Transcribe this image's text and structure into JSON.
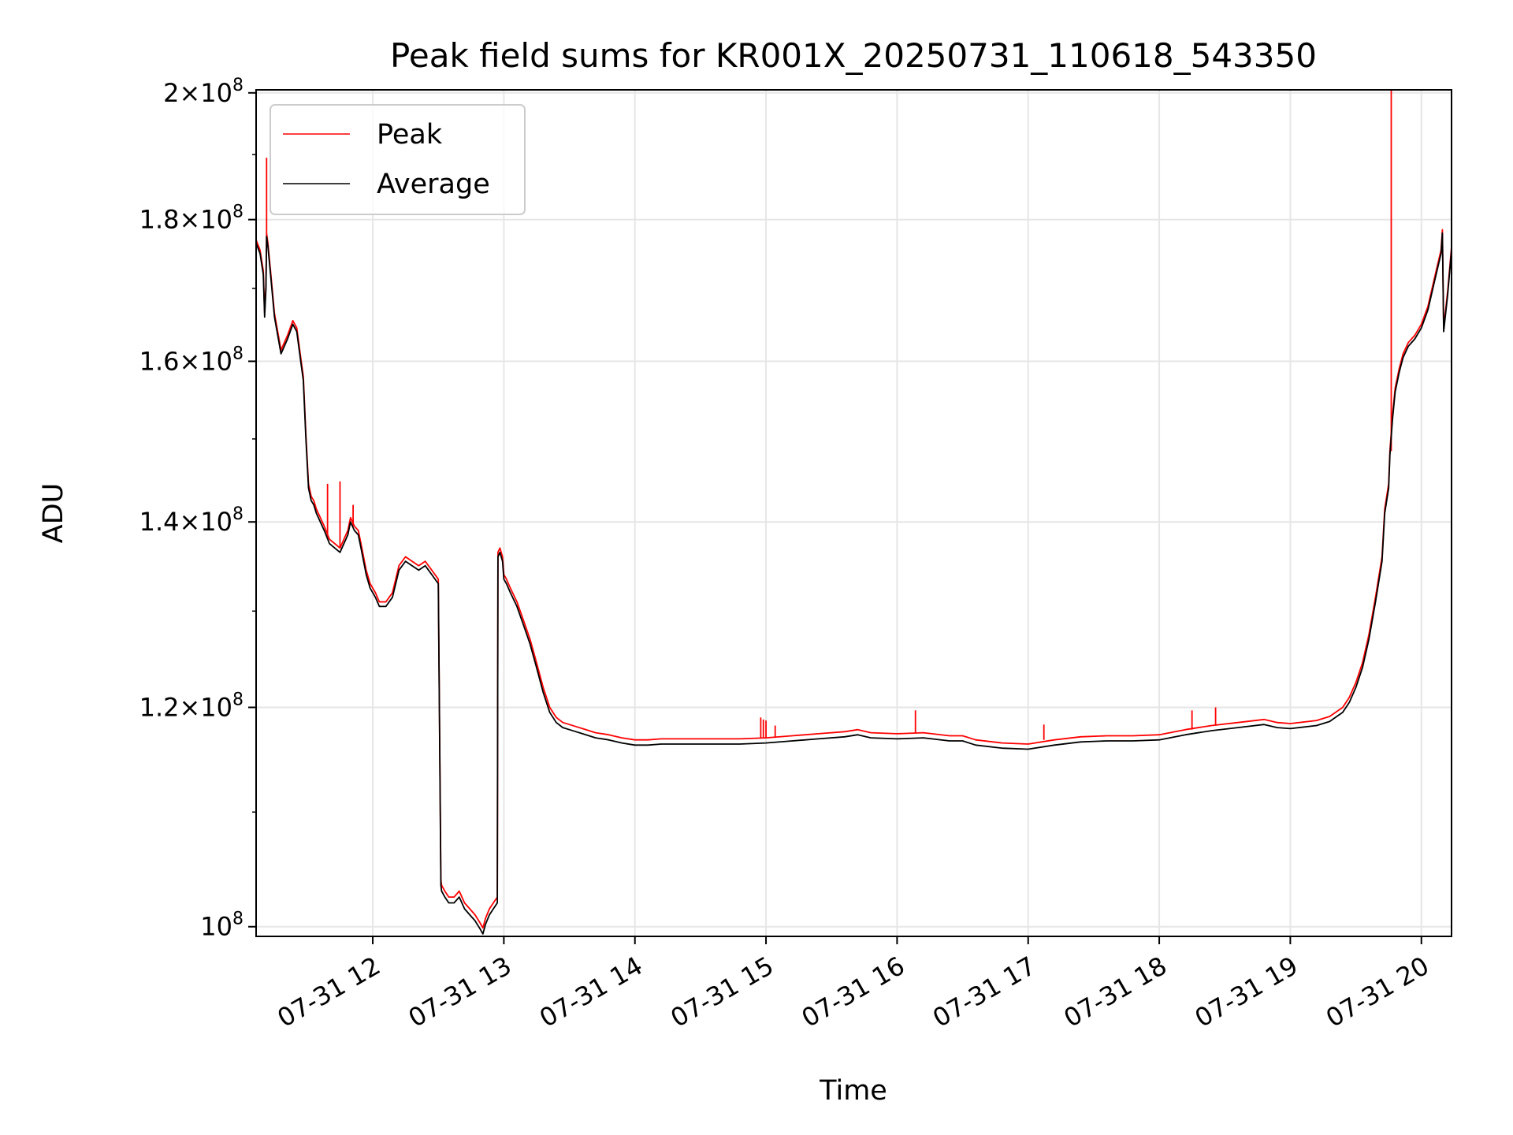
{
  "chart_data": {
    "type": "line",
    "title": "Peak field sums for KR001X_20250731_110618_543350",
    "xlabel": "Time",
    "ylabel": "ADU",
    "yscale": "log",
    "xlim": [
      11.11,
      20.23
    ],
    "ylim": [
      99200000,
      200500000
    ],
    "grid": true,
    "legend_position": "upper-left",
    "x_unit": "hour of day (2025-07-31)",
    "x_ticks": [
      {
        "value": 12,
        "label": "07-31 12"
      },
      {
        "value": 13,
        "label": "07-31 13"
      },
      {
        "value": 14,
        "label": "07-31 14"
      },
      {
        "value": 15,
        "label": "07-31 15"
      },
      {
        "value": 16,
        "label": "07-31 16"
      },
      {
        "value": 17,
        "label": "07-31 17"
      },
      {
        "value": 18,
        "label": "07-31 18"
      },
      {
        "value": 19,
        "label": "07-31 19"
      },
      {
        "value": 20,
        "label": "07-31 20"
      }
    ],
    "y_ticks": [
      {
        "value": 100000000,
        "mantissa": "",
        "exp": "8"
      },
      {
        "value": 120000000,
        "mantissa": "1.2",
        "exp": "8"
      },
      {
        "value": 140000000,
        "mantissa": "1.4",
        "exp": "8"
      },
      {
        "value": 160000000,
        "mantissa": "1.6",
        "exp": "8"
      },
      {
        "value": 180000000,
        "mantissa": "1.8",
        "exp": "8"
      },
      {
        "value": 200000000,
        "mantissa": "2",
        "exp": "8"
      }
    ],
    "series": [
      {
        "name": "Average",
        "color": "#000000",
        "x": [
          11.11,
          11.14,
          11.165,
          11.175,
          11.185,
          11.19,
          11.2,
          11.22,
          11.25,
          11.3,
          11.35,
          11.39,
          11.42,
          11.45,
          11.47,
          11.49,
          11.51,
          11.53,
          11.55,
          11.57,
          11.6,
          11.63,
          11.67,
          11.71,
          11.75,
          11.78,
          11.81,
          11.83,
          11.86,
          11.89,
          11.91,
          11.95,
          11.98,
          12.02,
          12.05,
          12.1,
          12.15,
          12.2,
          12.25,
          12.3,
          12.35,
          12.4,
          12.45,
          12.5,
          12.52,
          12.525,
          12.55,
          12.58,
          12.62,
          12.66,
          12.7,
          12.74,
          12.78,
          12.82,
          12.84,
          12.86,
          12.89,
          12.92,
          12.95,
          12.955,
          12.97,
          12.99,
          13.0,
          13.02,
          13.05,
          13.1,
          13.15,
          13.2,
          13.25,
          13.3,
          13.35,
          13.4,
          13.45,
          13.5,
          13.55,
          13.6,
          13.7,
          13.8,
          13.9,
          14.0,
          14.1,
          14.2,
          14.4,
          14.6,
          14.8,
          15.0,
          15.2,
          15.4,
          15.6,
          15.7,
          15.8,
          16.0,
          16.2,
          16.4,
          16.5,
          16.6,
          16.8,
          17.0,
          17.2,
          17.4,
          17.6,
          17.8,
          18.0,
          18.2,
          18.4,
          18.6,
          18.8,
          18.9,
          19.0,
          19.2,
          19.3,
          19.4,
          19.45,
          19.5,
          19.55,
          19.6,
          19.65,
          19.7,
          19.72,
          19.75,
          19.76,
          19.78,
          19.8,
          19.83,
          19.86,
          19.9,
          19.95,
          20.0,
          20.05,
          20.1,
          20.15,
          20.16,
          20.17,
          20.2,
          20.23
        ],
        "y": [
          176500000,
          175000000,
          172000000,
          166000000,
          170000000,
          177500000,
          176000000,
          172000000,
          166000000,
          161000000,
          163000000,
          165000000,
          164000000,
          160000000,
          157500000,
          150000000,
          144000000,
          142500000,
          142000000,
          141000000,
          140000000,
          139000000,
          137500000,
          137000000,
          136500000,
          137500000,
          138500000,
          140000000,
          139000000,
          138500000,
          137000000,
          134000000,
          132500000,
          131500000,
          130500000,
          130500000,
          131500000,
          134500000,
          135500000,
          135000000,
          134500000,
          135000000,
          134000000,
          133000000,
          103500000,
          103000000,
          102500000,
          102000000,
          102000000,
          102500000,
          101500000,
          101000000,
          100500000,
          99800000,
          99400000,
          100200000,
          101000000,
          101500000,
          102000000,
          136000000,
          136500000,
          135500000,
          133500000,
          133000000,
          132000000,
          130500000,
          128500000,
          126500000,
          124000000,
          121500000,
          119500000,
          118500000,
          118000000,
          117800000,
          117600000,
          117400000,
          117000000,
          116800000,
          116500000,
          116300000,
          116300000,
          116400000,
          116400000,
          116400000,
          116400000,
          116500000,
          116700000,
          116900000,
          117100000,
          117300000,
          117000000,
          116900000,
          117000000,
          116700000,
          116700000,
          116300000,
          116000000,
          115900000,
          116300000,
          116600000,
          116700000,
          116700000,
          116800000,
          117300000,
          117700000,
          118000000,
          118300000,
          118000000,
          117900000,
          118200000,
          118600000,
          119500000,
          120500000,
          122000000,
          124000000,
          127000000,
          131000000,
          135500000,
          141000000,
          144000000,
          148000000,
          152500000,
          156000000,
          158500000,
          160500000,
          162000000,
          163000000,
          164500000,
          167000000,
          171000000,
          175000000,
          178000000,
          164000000,
          169000000,
          175500000
        ]
      },
      {
        "name": "Peak",
        "color": "#ff0000",
        "x": [
          11.11,
          11.14,
          11.165,
          11.175,
          11.185,
          11.19,
          11.2,
          11.22,
          11.25,
          11.3,
          11.35,
          11.39,
          11.42,
          11.45,
          11.47,
          11.49,
          11.51,
          11.53,
          11.55,
          11.57,
          11.6,
          11.63,
          11.67,
          11.71,
          11.75,
          11.78,
          11.81,
          11.83,
          11.86,
          11.89,
          11.91,
          11.95,
          11.98,
          12.02,
          12.05,
          12.1,
          12.15,
          12.2,
          12.25,
          12.3,
          12.35,
          12.4,
          12.45,
          12.5,
          12.52,
          12.525,
          12.55,
          12.58,
          12.62,
          12.66,
          12.7,
          12.74,
          12.78,
          12.82,
          12.84,
          12.86,
          12.89,
          12.92,
          12.95,
          12.955,
          12.97,
          12.99,
          13.0,
          13.02,
          13.05,
          13.1,
          13.15,
          13.2,
          13.25,
          13.3,
          13.35,
          13.4,
          13.45,
          13.5,
          13.55,
          13.6,
          13.7,
          13.8,
          13.9,
          14.0,
          14.1,
          14.2,
          14.4,
          14.6,
          14.8,
          15.0,
          15.2,
          15.4,
          15.6,
          15.7,
          15.8,
          16.0,
          16.2,
          16.4,
          16.5,
          16.6,
          16.8,
          17.0,
          17.2,
          17.4,
          17.6,
          17.8,
          18.0,
          18.2,
          18.4,
          18.6,
          18.8,
          18.9,
          19.0,
          19.2,
          19.3,
          19.4,
          19.45,
          19.5,
          19.55,
          19.6,
          19.65,
          19.7,
          19.72,
          19.75,
          19.76,
          19.78,
          19.8,
          19.83,
          19.86,
          19.9,
          19.95,
          20.0,
          20.05,
          20.1,
          20.15,
          20.16,
          20.17,
          20.2,
          20.23
        ],
        "y": [
          177000000,
          175500000,
          172500000,
          166500000,
          170500000,
          178000000,
          176500000,
          172500000,
          166500000,
          161500000,
          163500000,
          165500000,
          164500000,
          160500000,
          158000000,
          150500000,
          144500000,
          143000000,
          142500000,
          141500000,
          140500000,
          139500000,
          138000000,
          137500000,
          137000000,
          138000000,
          139000000,
          140500000,
          139500000,
          139000000,
          137500000,
          134500000,
          133000000,
          132000000,
          131000000,
          131000000,
          132000000,
          135000000,
          136000000,
          135500000,
          135000000,
          135500000,
          134500000,
          133500000,
          104000000,
          103500000,
          103000000,
          102500000,
          102500000,
          103000000,
          102000000,
          101500000,
          101000000,
          100300000,
          99900000,
          100700000,
          101500000,
          102000000,
          102500000,
          136500000,
          137000000,
          136000000,
          134000000,
          133500000,
          132500000,
          131000000,
          129000000,
          127000000,
          124500000,
          122000000,
          120000000,
          119000000,
          118500000,
          118300000,
          118100000,
          117900000,
          117500000,
          117300000,
          117000000,
          116800000,
          116800000,
          116900000,
          116900000,
          116900000,
          116900000,
          117000000,
          117200000,
          117400000,
          117600000,
          117800000,
          117500000,
          117400000,
          117500000,
          117200000,
          117200000,
          116800000,
          116500000,
          116400000,
          116800000,
          117100000,
          117200000,
          117200000,
          117300000,
          117800000,
          118200000,
          118500000,
          118800000,
          118500000,
          118400000,
          118700000,
          119100000,
          120000000,
          121000000,
          122500000,
          124500000,
          127500000,
          131500000,
          136000000,
          141500000,
          144500000,
          148500000,
          153000000,
          156500000,
          159000000,
          161000000,
          162500000,
          163500000,
          165000000,
          167500000,
          171500000,
          175500000,
          178500000,
          164500000,
          169500000,
          176000000
        ],
        "spikes": [
          {
            "x": 11.19,
            "y": 189500000
          },
          {
            "x": 11.655,
            "y": 144500000
          },
          {
            "x": 11.75,
            "y": 144800000
          },
          {
            "x": 11.85,
            "y": 142000000
          },
          {
            "x": 14.96,
            "y": 119000000
          },
          {
            "x": 14.98,
            "y": 118800000
          },
          {
            "x": 15.0,
            "y": 118700000
          },
          {
            "x": 15.07,
            "y": 118200000
          },
          {
            "x": 16.14,
            "y": 119700000
          },
          {
            "x": 17.12,
            "y": 118300000
          },
          {
            "x": 18.25,
            "y": 119700000
          },
          {
            "x": 18.43,
            "y": 120000000
          },
          {
            "x": 19.77,
            "y": 200500000
          }
        ]
      }
    ]
  }
}
